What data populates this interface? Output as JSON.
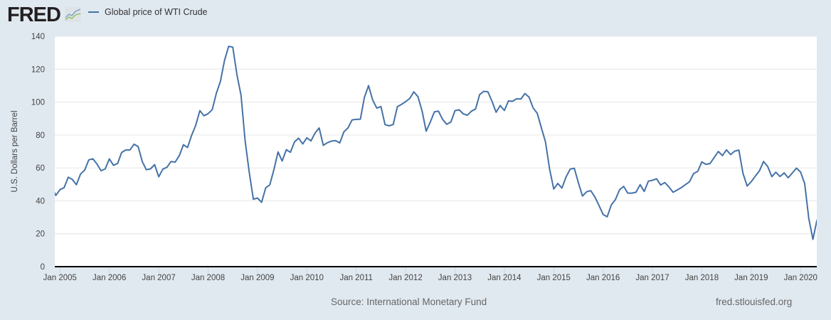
{
  "header": {
    "logo_text": "FRED",
    "legend_label": "Global price of WTI Crude"
  },
  "footer": {
    "source": "Source: International Monetary Fund",
    "site": "fred.stlouisfed.org"
  },
  "colors": {
    "line": "#4572a7",
    "background": "#e1e9f0",
    "grid": "#e6e6e6"
  },
  "chart_data": {
    "type": "line",
    "title": "Global price of WTI Crude",
    "xlabel": "",
    "ylabel": "U.S. Dollars per Barrel",
    "ylim": [
      0,
      140
    ],
    "yticks": [
      "0",
      "20",
      "40",
      "60",
      "80",
      "100",
      "120",
      "140"
    ],
    "xticks": [
      "Jan 2005",
      "Jan 2006",
      "Jan 2007",
      "Jan 2008",
      "Jan 2009",
      "Jan 2010",
      "Jan 2011",
      "Jan 2012",
      "Jan 2013",
      "Jan 2014",
      "Jan 2015",
      "Jan 2016",
      "Jan 2017",
      "Jan 2018",
      "Jan 2019",
      "Jan 2020"
    ],
    "grid": true,
    "legend_position": "top-left",
    "frequency": "monthly",
    "start": "2004-11",
    "series": [
      {
        "name": "Global price of WTI Crude",
        "values": [
          48.5,
          43.3,
          46.8,
          48.0,
          54.3,
          53.0,
          49.8,
          56.3,
          58.7,
          64.9,
          65.5,
          62.4,
          58.3,
          59.4,
          65.5,
          61.6,
          62.7,
          69.4,
          70.9,
          70.9,
          74.4,
          73.0,
          63.8,
          58.9,
          59.4,
          62.0,
          54.6,
          59.3,
          60.4,
          63.9,
          63.5,
          67.5,
          74.1,
          72.4,
          79.9,
          85.9,
          94.8,
          91.7,
          93.0,
          95.4,
          105.4,
          112.6,
          125.4,
          133.9,
          133.4,
          116.7,
          104.1,
          76.6,
          57.4,
          41.0,
          41.7,
          39.1,
          47.9,
          49.7,
          59.0,
          69.7,
          64.2,
          71.1,
          69.5,
          75.8,
          78.1,
          74.6,
          78.3,
          76.4,
          81.2,
          84.3,
          73.7,
          75.3,
          76.3,
          76.6,
          75.2,
          81.9,
          84.3,
          89.2,
          89.5,
          89.6,
          102.9,
          110.0,
          101.3,
          96.3,
          97.3,
          86.3,
          85.6,
          86.4,
          97.2,
          98.6,
          100.3,
          102.2,
          106.2,
          103.3,
          94.7,
          82.3,
          87.9,
          94.1,
          94.5,
          89.5,
          86.5,
          87.9,
          94.8,
          95.3,
          92.9,
          92.0,
          94.5,
          95.8,
          104.6,
          106.5,
          106.3,
          100.5,
          93.8,
          97.9,
          94.9,
          100.7,
          100.5,
          102.0,
          101.8,
          105.2,
          103.0,
          96.5,
          93.2,
          84.4,
          75.8,
          59.3,
          47.2,
          50.6,
          47.8,
          54.5,
          59.3,
          59.8,
          50.9,
          42.9,
          45.5,
          46.2,
          42.4,
          37.2,
          31.7,
          30.3,
          37.5,
          40.8,
          46.7,
          48.8,
          44.7,
          44.7,
          45.2,
          49.8,
          45.7,
          52.0,
          52.5,
          53.4,
          49.6,
          51.1,
          48.5,
          45.2,
          46.6,
          48.0,
          49.8,
          51.6,
          56.6,
          57.9,
          63.7,
          62.2,
          62.7,
          66.3,
          70.0,
          67.5,
          71.0,
          68.1,
          70.2,
          70.8,
          56.7,
          49.0,
          51.6,
          55.0,
          58.2,
          63.9,
          60.9,
          54.7,
          57.4,
          54.8,
          57.0,
          54.0,
          57.0,
          59.9,
          57.5,
          50.5,
          29.2,
          16.6,
          28.6
        ]
      }
    ]
  }
}
